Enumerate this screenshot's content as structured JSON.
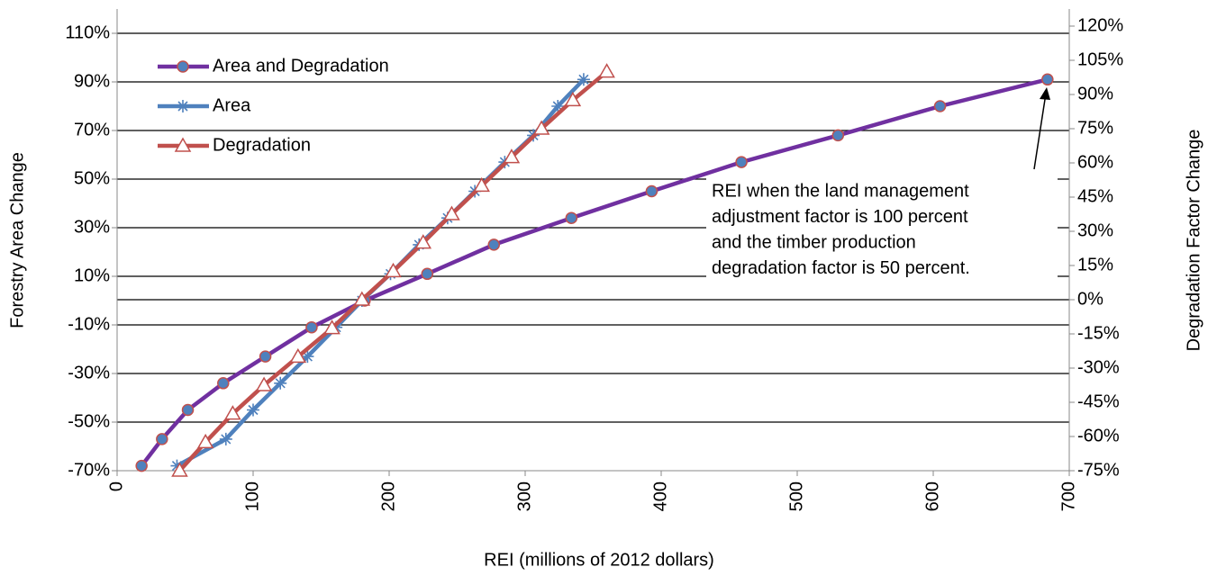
{
  "chart_data": {
    "type": "line",
    "xlabel": "REI (millions of 2012 dollars)",
    "ylabel": "Forestry  Area Change",
    "y2label": "Degradation  Factor Change",
    "annotation": [
      "REI when the land management",
      "adjustment factor is 100 percent",
      "and the timber production",
      "degradation  factor is 50 percent."
    ],
    "xlim": [
      0,
      700
    ],
    "xticks": [
      0,
      100,
      200,
      300,
      400,
      500,
      600,
      700
    ],
    "ylim": [
      -70,
      120
    ],
    "yticks": [
      {
        "value": -70,
        "label": "-70%"
      },
      {
        "value": -50,
        "label": "-50%"
      },
      {
        "value": -30,
        "label": "-30%"
      },
      {
        "value": -10,
        "label": "-10%"
      },
      {
        "value": 10,
        "label": "10%"
      },
      {
        "value": 30,
        "label": "30%"
      },
      {
        "value": 50,
        "label": "50%"
      },
      {
        "value": 70,
        "label": "70%"
      },
      {
        "value": 90,
        "label": "90%"
      },
      {
        "value": 110,
        "label": "110%"
      }
    ],
    "y2lim": [
      -75,
      127.5
    ],
    "y2ticks": [
      {
        "value": -75,
        "label": "-75%"
      },
      {
        "value": -60,
        "label": "-60%"
      },
      {
        "value": -45,
        "label": "-45%"
      },
      {
        "value": -30,
        "label": "-30%"
      },
      {
        "value": -15,
        "label": "-15%"
      },
      {
        "value": 0,
        "label": "0%"
      },
      {
        "value": 15,
        "label": "15%"
      },
      {
        "value": 30,
        "label": "30%"
      },
      {
        "value": 45,
        "label": "45%"
      },
      {
        "value": 60,
        "label": "60%"
      },
      {
        "value": 75,
        "label": "75%"
      },
      {
        "value": 90,
        "label": "90%"
      },
      {
        "value": 105,
        "label": "105%"
      },
      {
        "value": 120,
        "label": "120%"
      }
    ],
    "grid": true,
    "series": [
      {
        "name": "Area and Degradation",
        "color": "#7030a0",
        "marker": "circle",
        "x": [
          18,
          33,
          52,
          78,
          109,
          143,
          182,
          228,
          277,
          334,
          393,
          459,
          530,
          605,
          684
        ],
        "values": [
          -68,
          -57,
          -45,
          -34,
          -23,
          -11,
          0,
          11,
          23,
          34,
          45,
          57,
          68,
          80,
          91
        ]
      },
      {
        "name": "Area",
        "color": "#4f81bd",
        "marker": "asterisk",
        "x": [
          44,
          80,
          100,
          120,
          140,
          161,
          180,
          201,
          222,
          243,
          263,
          285,
          306,
          324,
          343
        ],
        "values": [
          -68,
          -57,
          -45,
          -34,
          -23,
          -11,
          0,
          11,
          23,
          34,
          45,
          57,
          68,
          80,
          91
        ]
      },
      {
        "name": "Degradation",
        "color": "#c0504d",
        "marker": "triangle",
        "axis": "y2",
        "x": [
          46,
          65,
          85,
          108,
          133,
          158,
          180,
          203,
          225,
          246,
          268,
          290,
          312,
          335,
          360
        ],
        "values": [
          -75,
          -62.5,
          -50,
          -37.5,
          -25,
          -12.5,
          0,
          12.5,
          25,
          37.5,
          50,
          62.5,
          75,
          87.5,
          100
        ]
      }
    ]
  }
}
